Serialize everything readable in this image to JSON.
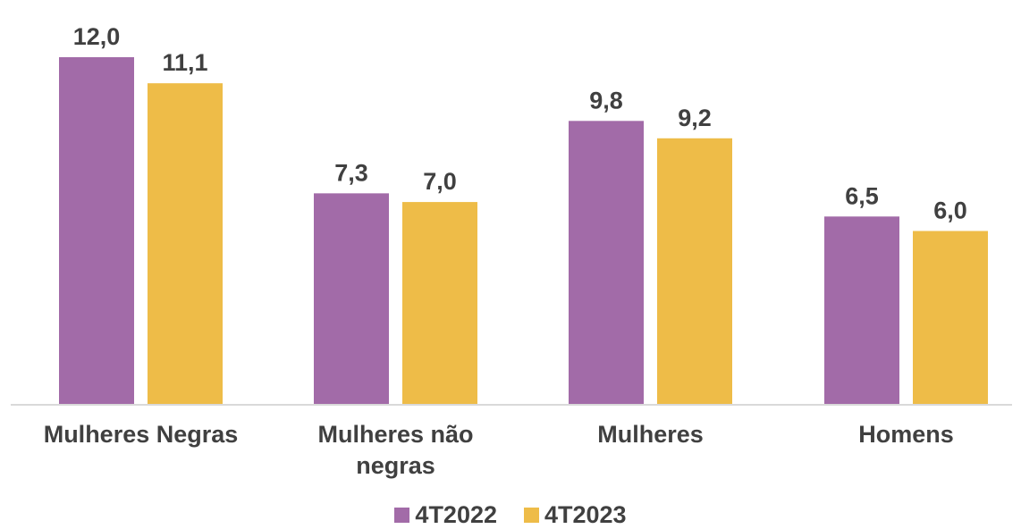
{
  "chart_data": {
    "type": "bar",
    "title": "",
    "xlabel": "",
    "ylabel": "",
    "categories": [
      [
        "Mulheres Negras"
      ],
      [
        "Mulheres não",
        "negras"
      ],
      [
        "Mulheres"
      ],
      [
        "Homens"
      ]
    ],
    "series": [
      {
        "name": "4T2022",
        "color": "#a26ba8",
        "values": [
          12.0,
          7.3,
          9.8,
          6.5
        ],
        "labels": [
          "12,0",
          "7,3",
          "9,8",
          "6,5"
        ]
      },
      {
        "name": "4T2023",
        "color": "#eebc48",
        "values": [
          11.1,
          7.0,
          9.2,
          6.0
        ],
        "labels": [
          "11,1",
          "7,0",
          "9,2",
          "6,0"
        ]
      }
    ],
    "ylim": [
      0,
      12
    ],
    "grid": false,
    "legend_position": "bottom"
  }
}
